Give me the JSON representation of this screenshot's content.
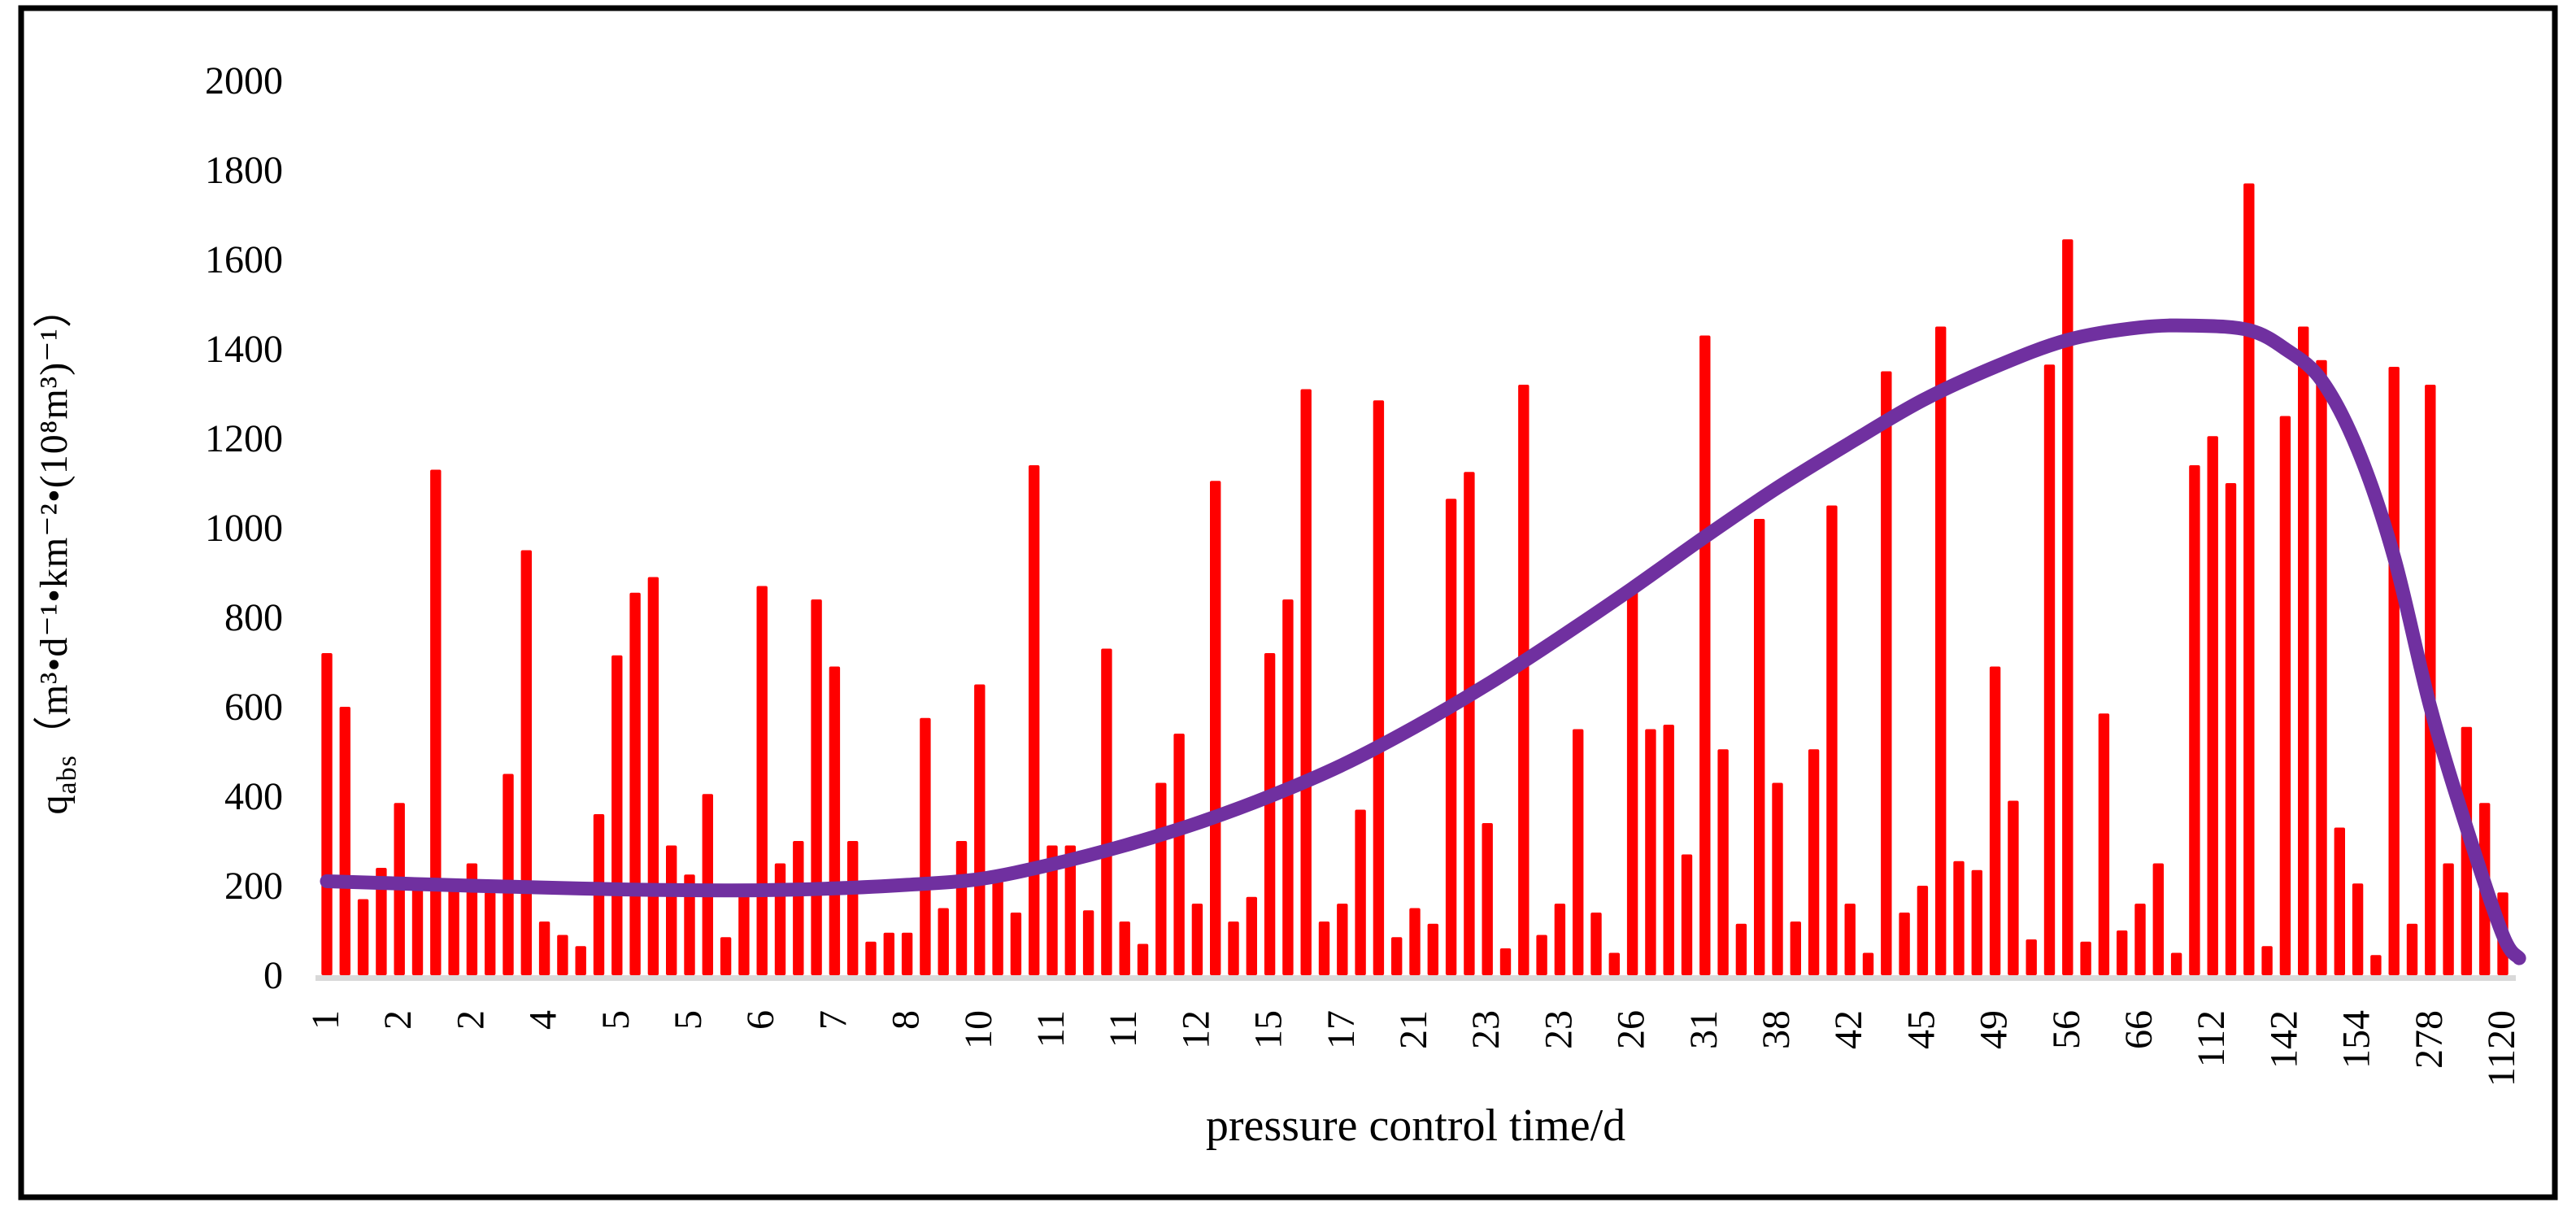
{
  "chart_data": {
    "type": "bar",
    "title": "",
    "xlabel": "pressure control time/d",
    "ylabel_prefix": "q",
    "ylabel_sub": "abs",
    "ylabel_units": "（m³•d⁻¹•km⁻²•(10⁸m³)⁻¹）",
    "ylim": [
      0,
      2000
    ],
    "yticks": [
      0,
      200,
      400,
      600,
      800,
      1000,
      1200,
      1400,
      1600,
      1800,
      2000
    ],
    "grid": "off",
    "legend": "none",
    "bar_color": "#FF0000",
    "trend_color": "#7030A0",
    "baseline_color": "#D9D9D9",
    "x_tick_labels": [
      "1",
      "2",
      "2",
      "4",
      "5",
      "5",
      "6",
      "7",
      "8",
      "10",
      "11",
      "11",
      "12",
      "15",
      "17",
      "21",
      "23",
      "23",
      "26",
      "31",
      "38",
      "42",
      "45",
      "49",
      "56",
      "66",
      "112",
      "142",
      "154",
      "278",
      "1120"
    ],
    "x_tick_every": 4,
    "values": [
      720,
      600,
      170,
      240,
      385,
      210,
      1130,
      195,
      250,
      185,
      450,
      950,
      120,
      90,
      65,
      360,
      715,
      855,
      890,
      290,
      225,
      405,
      85,
      200,
      870,
      250,
      300,
      840,
      690,
      300,
      75,
      95,
      95,
      575,
      150,
      300,
      650,
      220,
      140,
      1140,
      290,
      290,
      145,
      730,
      120,
      70,
      430,
      540,
      160,
      1105,
      120,
      175,
      720,
      840,
      1310,
      120,
      160,
      370,
      1285,
      85,
      150,
      115,
      1065,
      1125,
      340,
      60,
      1320,
      90,
      160,
      550,
      140,
      50,
      860,
      550,
      560,
      270,
      1430,
      505,
      115,
      1020,
      430,
      120,
      505,
      1050,
      160,
      50,
      1350,
      140,
      200,
      1450,
      255,
      235,
      690,
      390,
      80,
      1365,
      1645,
      75,
      585,
      100,
      160,
      250,
      50,
      1140,
      1205,
      1100,
      1770,
      65,
      1250,
      1450,
      1375,
      330,
      205,
      45,
      1360,
      115,
      1320,
      250,
      555,
      385,
      185
    ],
    "trend_points": [
      [
        1,
        210
      ],
      [
        5,
        205
      ],
      [
        9,
        200
      ],
      [
        13,
        196
      ],
      [
        17,
        192
      ],
      [
        21,
        190
      ],
      [
        25,
        190
      ],
      [
        29,
        194
      ],
      [
        33,
        202
      ],
      [
        37,
        215
      ],
      [
        41,
        248
      ],
      [
        45,
        290
      ],
      [
        49,
        340
      ],
      [
        53,
        400
      ],
      [
        57,
        470
      ],
      [
        61,
        555
      ],
      [
        65,
        650
      ],
      [
        69,
        755
      ],
      [
        73,
        865
      ],
      [
        77,
        980
      ],
      [
        81,
        1090
      ],
      [
        85,
        1190
      ],
      [
        89,
        1285
      ],
      [
        93,
        1360
      ],
      [
        97,
        1420
      ],
      [
        101,
        1448
      ],
      [
        104,
        1452
      ],
      [
        107,
        1442
      ],
      [
        109,
        1400
      ],
      [
        111,
        1330
      ],
      [
        113,
        1175
      ],
      [
        115,
        935
      ],
      [
        117,
        600
      ],
      [
        119,
        330
      ],
      [
        121,
        90
      ],
      [
        121.9,
        38
      ]
    ]
  },
  "layout_note_visible_text_only": true
}
